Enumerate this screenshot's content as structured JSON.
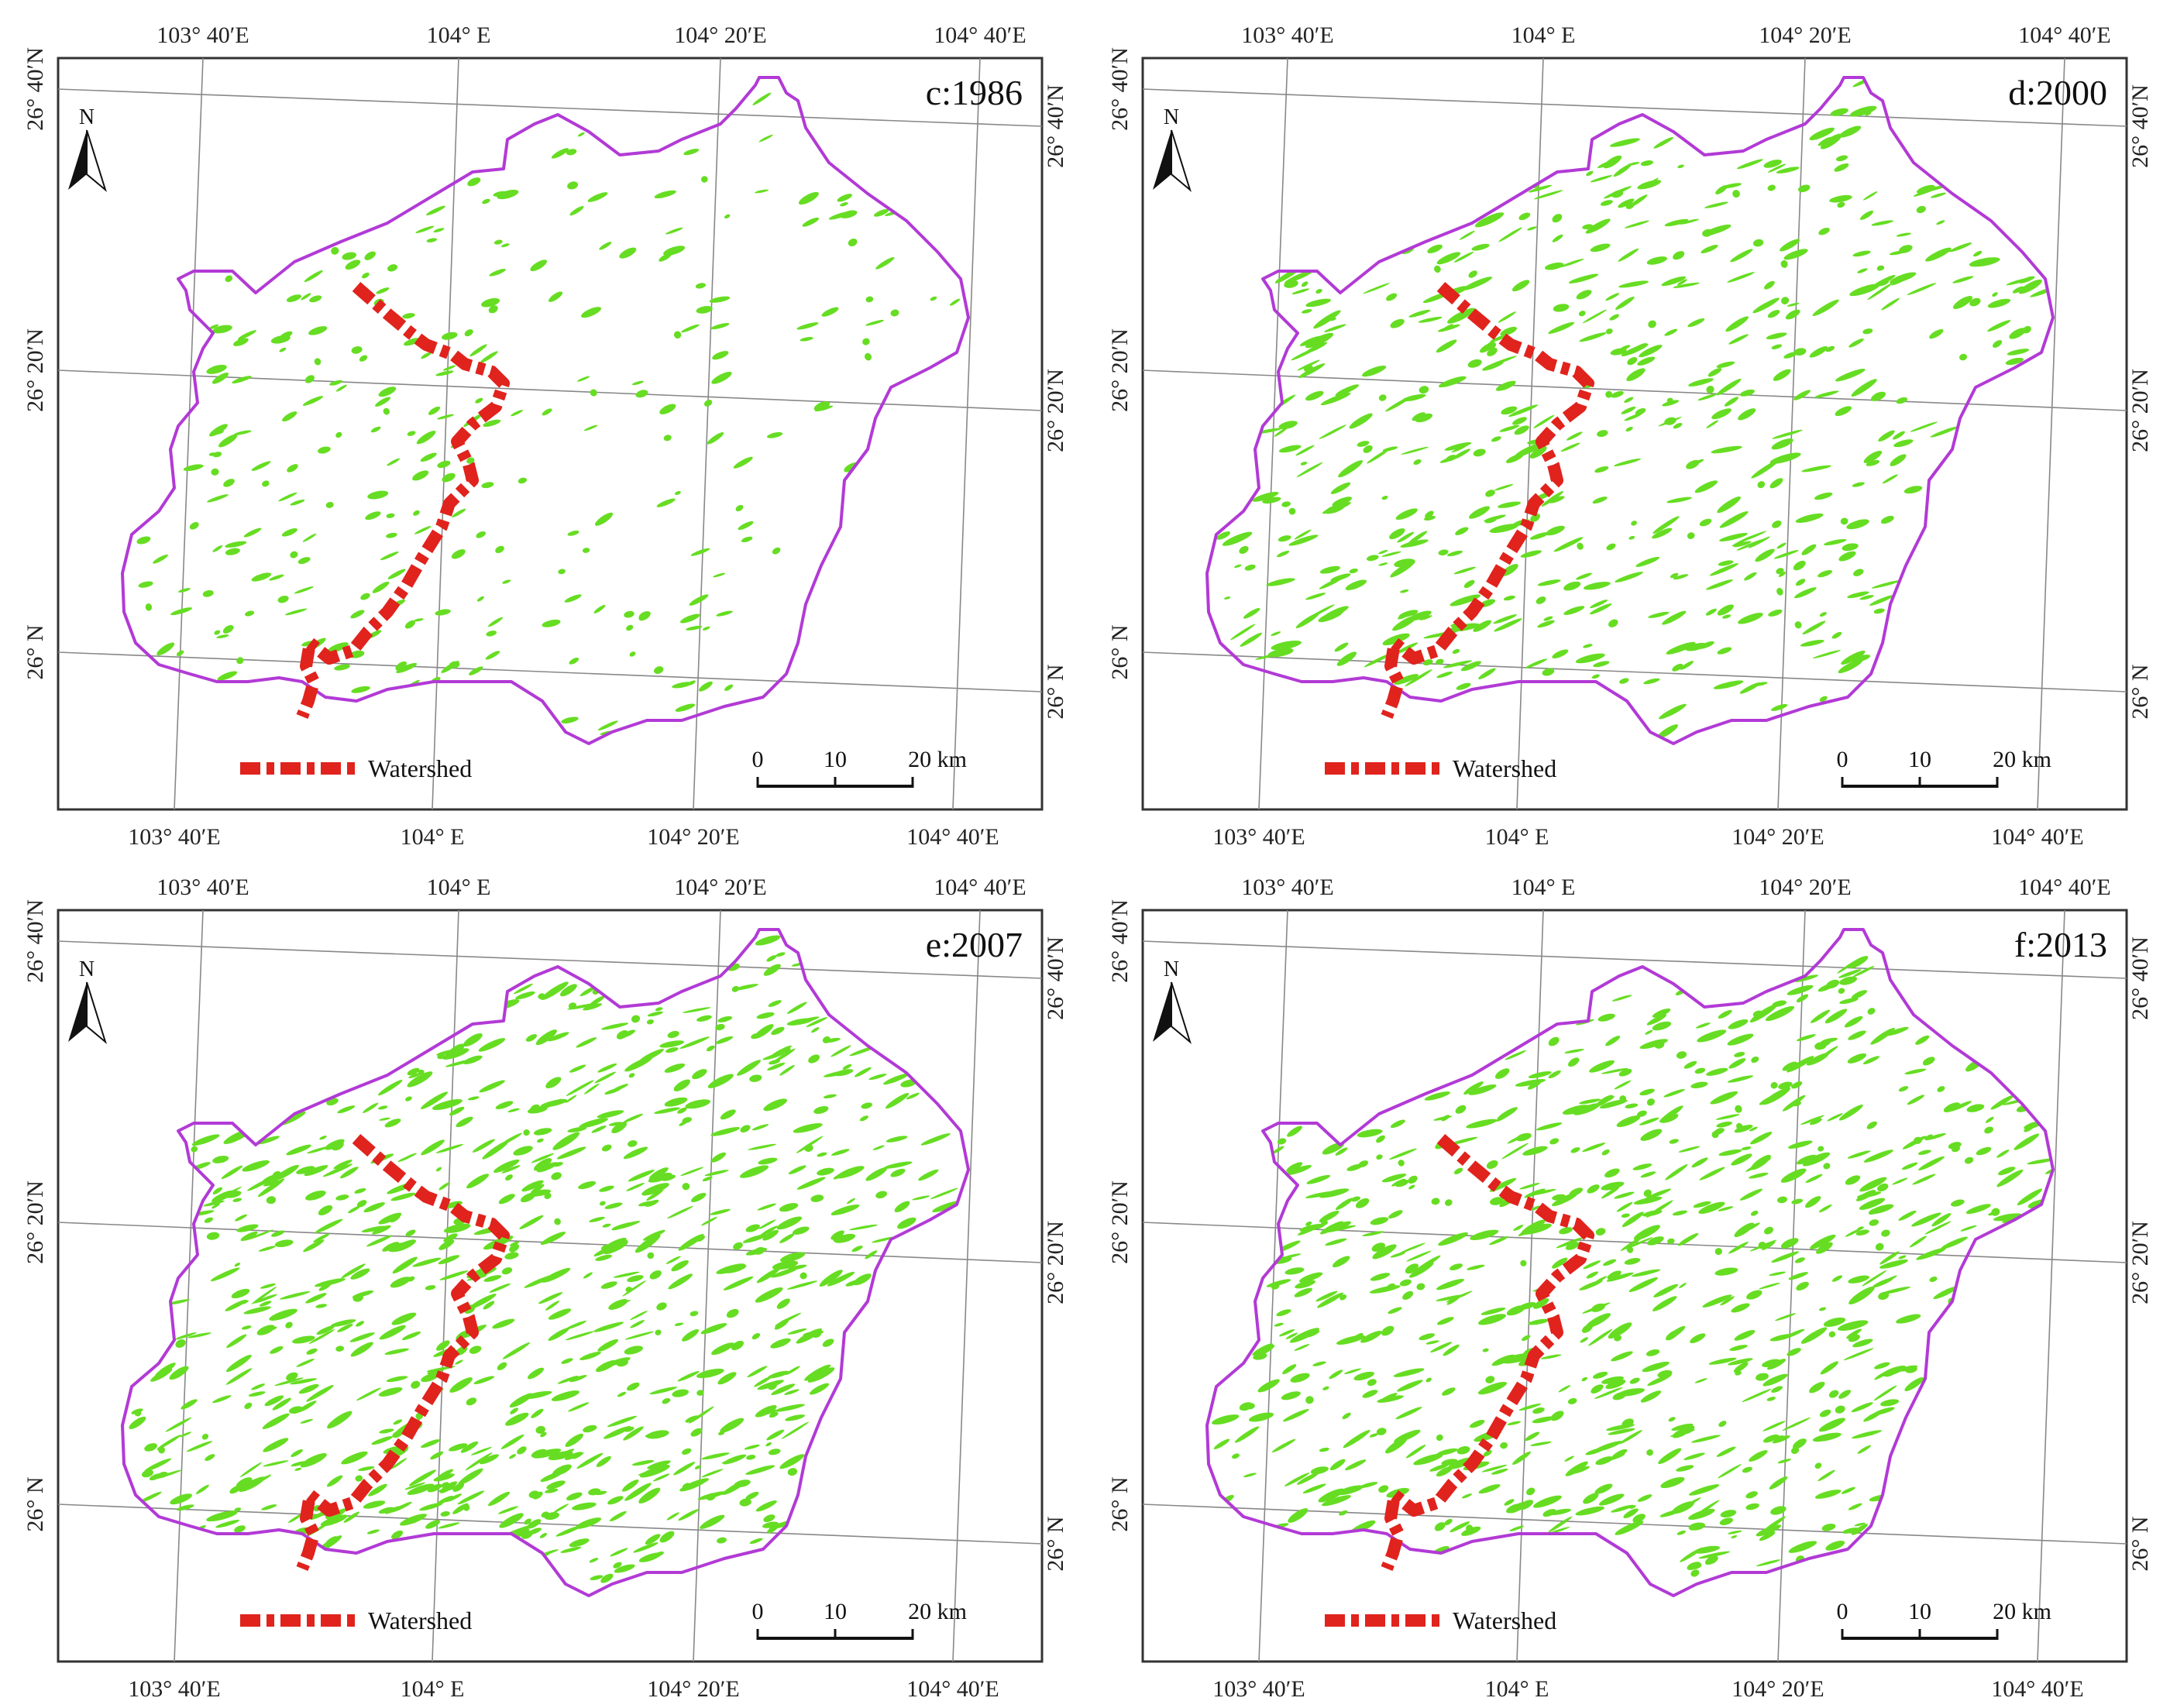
{
  "panels": [
    {
      "title": "c:1986"
    },
    {
      "title": "d:2000"
    },
    {
      "title": "e:2007"
    },
    {
      "title": "f:2013"
    }
  ],
  "graticule": {
    "lon_labels": [
      "103° 40′E",
      "104° E",
      "104° 20′E",
      "104° 40′E"
    ],
    "lat_labels": [
      "26° 40′N",
      "26° 20′N",
      "26° N"
    ]
  },
  "north_label": "N",
  "legend": {
    "label": "Watershed"
  },
  "scale": {
    "ticks": [
      "0",
      "10",
      "20 km"
    ]
  },
  "colors": {
    "boundary": "#b23ad6",
    "watershed": "#e0231d",
    "vegetation": "#66dd22",
    "frame": "#333333",
    "grid": "#888888"
  }
}
